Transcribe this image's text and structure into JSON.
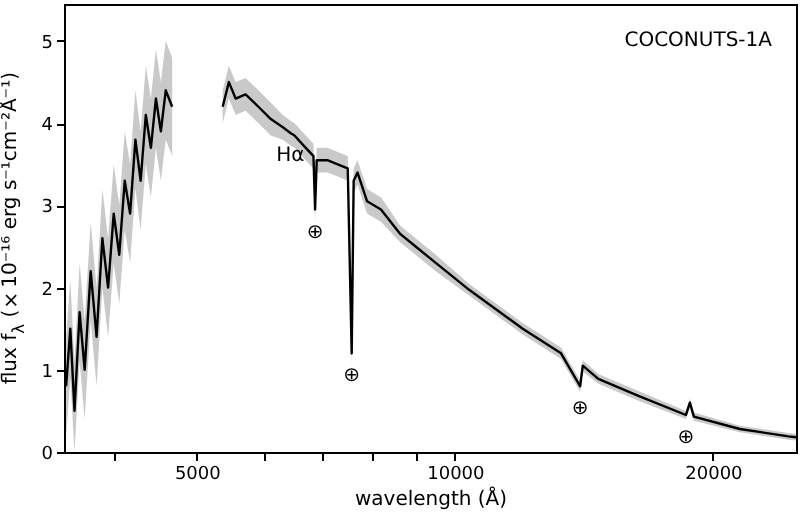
{
  "chart_data": {
    "type": "line",
    "xlabel": "wavelength (Å)",
    "ylabel": "flux f$_{λ}$ (×10⁻¹⁶ erg s⁻¹cm⁻²Å⁻¹)",
    "log": "x",
    "xlim": [
      3500,
      25000
    ],
    "ylim": [
      0,
      5.45
    ],
    "xticks": [
      {
        "value": 4000,
        "label": null
      },
      5000,
      {
        "value": 6000,
        "label": null
      },
      {
        "value": 7000,
        "label": null
      },
      {
        "value": 8000,
        "label": null
      },
      {
        "value": 9000,
        "label": null
      },
      10000,
      20000
    ],
    "yticks": [
      0,
      1,
      2,
      3,
      4,
      5
    ],
    "series": [
      {
        "color": "#000000",
        "x": [
          3520,
          3560,
          3600,
          3650,
          3700,
          3760,
          3820,
          3880,
          3940,
          4000,
          4060,
          4120,
          4180,
          4240,
          4300,
          4360,
          4420,
          4480,
          4540,
          4600,
          4680,
          5000,
          5360,
          5450,
          5550,
          5700,
          5900,
          6100,
          6300,
          6430,
          6500,
          6700,
          6840,
          6870,
          6900,
          7100,
          7300,
          7500,
          7580,
          7620,
          7700,
          7900,
          8200,
          8640,
          9000,
          9500,
          10400,
          12000,
          13300,
          14000,
          14100,
          14700,
          16400,
          18600,
          18800,
          19000,
          21500,
          24500,
          25000
        ],
        "values": [
          0.8,
          1.5,
          0.5,
          1.7,
          1.0,
          2.2,
          1.4,
          2.6,
          2.0,
          2.9,
          2.4,
          3.3,
          2.9,
          3.8,
          3.3,
          4.1,
          3.7,
          4.3,
          3.9,
          4.4,
          4.2,
          null,
          4.2,
          4.5,
          4.3,
          4.35,
          4.2,
          4.05,
          3.95,
          3.88,
          3.85,
          3.7,
          3.6,
          2.95,
          3.55,
          3.55,
          3.5,
          3.45,
          1.2,
          3.3,
          3.4,
          3.05,
          2.95,
          2.65,
          2.5,
          2.3,
          1.97,
          1.5,
          1.2,
          0.8,
          1.05,
          0.89,
          0.68,
          0.45,
          0.6,
          0.43,
          0.28,
          0.19,
          0.18
        ],
        "lower": [
          0.2,
          0.9,
          0.0,
          1.1,
          0.4,
          1.6,
          0.8,
          2.0,
          1.4,
          2.3,
          1.8,
          2.7,
          2.3,
          3.2,
          2.7,
          3.5,
          3.1,
          3.7,
          3.3,
          3.8,
          3.6,
          null,
          4.0,
          4.3,
          4.1,
          4.15,
          4.0,
          3.85,
          3.8,
          3.73,
          3.7,
          3.55,
          3.45,
          2.8,
          3.4,
          3.4,
          3.35,
          3.3,
          1.05,
          3.15,
          3.25,
          2.9,
          2.8,
          2.55,
          2.4,
          2.2,
          1.9,
          1.43,
          1.13,
          0.73,
          0.98,
          0.83,
          0.62,
          0.4,
          0.55,
          0.38,
          0.24,
          0.15,
          0.14
        ],
        "upper": [
          1.4,
          2.1,
          1.1,
          2.3,
          1.6,
          2.8,
          2.0,
          3.2,
          2.6,
          3.5,
          3.0,
          3.9,
          3.5,
          4.4,
          3.9,
          4.7,
          4.3,
          4.9,
          4.5,
          5.0,
          4.8,
          null,
          4.4,
          4.7,
          4.5,
          4.55,
          4.4,
          4.25,
          4.1,
          4.03,
          4.0,
          3.85,
          3.75,
          3.1,
          3.7,
          3.7,
          3.65,
          3.6,
          1.35,
          3.45,
          3.55,
          3.2,
          3.1,
          2.75,
          2.6,
          2.4,
          2.04,
          1.57,
          1.27,
          0.87,
          1.12,
          0.95,
          0.74,
          0.5,
          0.65,
          0.48,
          0.32,
          0.23,
          0.22
        ]
      }
    ],
    "annotations": [
      "COCONUTS-1A",
      {
        "text": "Hα",
        "x": 6430,
        "y": 3.88
      },
      {
        "text": "⊕",
        "x": 6870,
        "y": 2.95
      },
      {
        "text": "⊕",
        "x": 7580,
        "y": 1.2
      },
      {
        "text": "⊕",
        "x": 14000,
        "y": 0.8
      },
      {
        "text": "⊕",
        "x": 18600,
        "y": 0.45
      }
    ]
  }
}
